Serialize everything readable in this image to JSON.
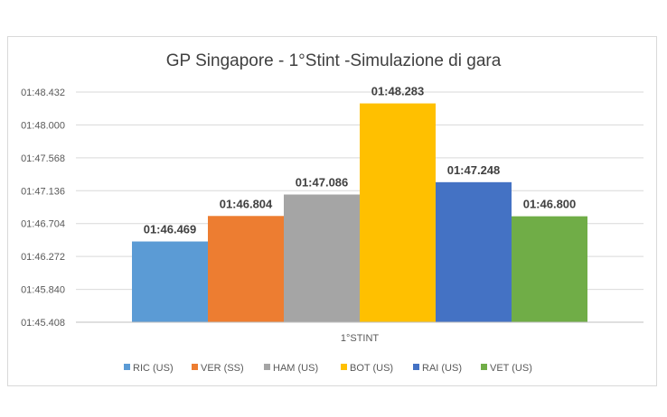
{
  "chart_data": {
    "type": "bar",
    "title": "GP  Singapore - 1°Stint -Simulazione di gara",
    "categories": [
      "1°STINT"
    ],
    "y_ticks": [
      "01:45.408",
      "01:45.840",
      "01:46.272",
      "01:46.704",
      "01:47.136",
      "01:47.568",
      "01:48.000",
      "01:48.432"
    ],
    "ylim": [
      105.408,
      108.432
    ],
    "grid": true,
    "legend_position": "bottom",
    "series": [
      {
        "name": "RIC (US)",
        "value": 106.469,
        "label": "01:46.469",
        "color": "#5b9bd5"
      },
      {
        "name": "VER (SS)",
        "value": 106.804,
        "label": "01:46.804",
        "color": "#ed7d31"
      },
      {
        "name": "HAM (US)",
        "value": 107.086,
        "label": "01:47.086",
        "color": "#a5a5a5"
      },
      {
        "name": "BOT (US)",
        "value": 108.283,
        "label": "01:48.283",
        "color": "#ffc000"
      },
      {
        "name": "RAI (US)",
        "value": 107.248,
        "label": "01:47.248",
        "color": "#4472c4"
      },
      {
        "name": "VET (US)",
        "value": 106.8,
        "label": "01:46.800",
        "color": "#70ad47"
      }
    ]
  }
}
